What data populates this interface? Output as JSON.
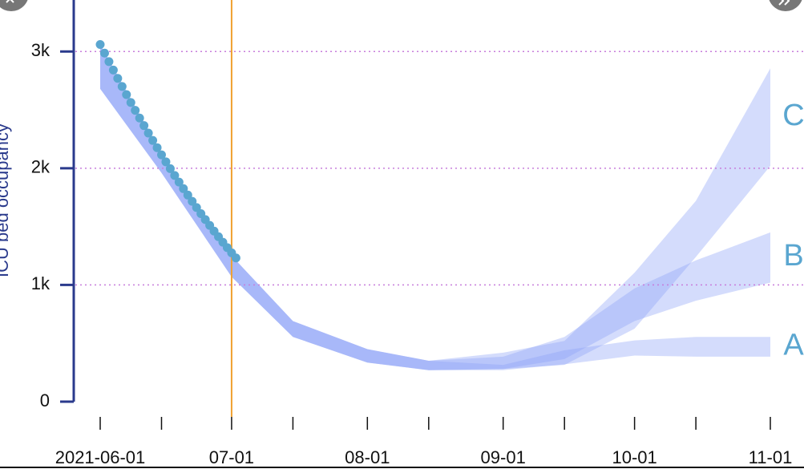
{
  "chart_data": {
    "type": "band-forecast",
    "y_label": "ICU bed occupancy",
    "ylim": [
      0,
      3400
    ],
    "yticks": [
      0,
      {
        "value": 1000,
        "label": "1k"
      },
      {
        "value": 2000,
        "label": "2k"
      },
      {
        "value": 3000,
        "label": "3k"
      }
    ],
    "grid": true,
    "xlim": [
      "2021-06-01",
      "2021-11-01"
    ],
    "xticks": [
      "2021-06-01",
      {
        "value": "2021-07-01",
        "label": "07-01"
      },
      {
        "value": "2021-08-01",
        "label": "08-01"
      },
      {
        "value": "2021-09-01",
        "label": "09-01"
      },
      {
        "value": "2021-10-01",
        "label": "10-01"
      },
      {
        "value": "2021-11-01",
        "label": "11-01"
      }
    ],
    "x_minor_ticks": [
      "2021-06-15",
      "2021-07-15",
      "2021-08-15",
      "2021-09-15",
      "2021-10-15"
    ],
    "marker_x": "2021-07-01",
    "marker_color": "#f0a030",
    "observed": {
      "color": "#5aa6d0",
      "x": [
        "2021-06-01",
        "2021-06-02",
        "2021-06-03",
        "2021-06-04",
        "2021-06-05",
        "2021-06-06",
        "2021-06-07",
        "2021-06-08",
        "2021-06-09",
        "2021-06-10",
        "2021-06-11",
        "2021-06-12",
        "2021-06-13",
        "2021-06-14",
        "2021-06-15",
        "2021-06-16",
        "2021-06-17",
        "2021-06-18",
        "2021-06-19",
        "2021-06-20",
        "2021-06-21",
        "2021-06-22",
        "2021-06-23",
        "2021-06-24",
        "2021-06-25",
        "2021-06-26",
        "2021-06-27",
        "2021-06-28",
        "2021-06-29",
        "2021-06-30",
        "2021-07-01",
        "2021-07-02"
      ],
      "values": [
        3060,
        2986,
        2913,
        2841,
        2770,
        2700,
        2631,
        2563,
        2496,
        2430,
        2365,
        2301,
        2238,
        2176,
        2115,
        2055,
        1996,
        1938,
        1881,
        1825,
        1770,
        1716,
        1663,
        1611,
        1560,
        1510,
        1461,
        1413,
        1366,
        1320,
        1275,
        1231
      ]
    },
    "band_x": [
      "2021-06-01",
      "2021-06-15",
      "2021-07-01",
      "2021-07-15",
      "2021-08-01",
      "2021-08-15",
      "2021-09-01",
      "2021-09-15",
      "2021-10-01",
      "2021-10-15",
      "2021-11-01"
    ],
    "series": [
      {
        "name": "A",
        "color": "#8fa4f6",
        "label_color": "#5aa6d0",
        "low": [
          2680,
          1960,
          1070,
          555,
          335,
          270,
          270,
          320,
          395,
          385,
          385
        ],
        "high": [
          3060,
          2130,
          1250,
          690,
          450,
          350,
          315,
          440,
          525,
          555,
          555
        ]
      },
      {
        "name": "B",
        "color": "#8fa4f6",
        "label_color": "#5aa6d0",
        "low": [
          2680,
          1960,
          1070,
          555,
          335,
          270,
          280,
          365,
          690,
          865,
          1020
        ],
        "high": [
          3060,
          2130,
          1250,
          690,
          450,
          350,
          385,
          555,
          970,
          1210,
          1450
        ]
      },
      {
        "name": "C",
        "color": "#8fa4f6",
        "label_color": "#5aa6d0",
        "low": [
          2680,
          1960,
          1070,
          555,
          335,
          270,
          280,
          315,
          625,
          1240,
          2020
        ],
        "high": [
          3060,
          2130,
          1250,
          690,
          450,
          350,
          420,
          520,
          1105,
          1720,
          2855
        ]
      }
    ]
  }
}
